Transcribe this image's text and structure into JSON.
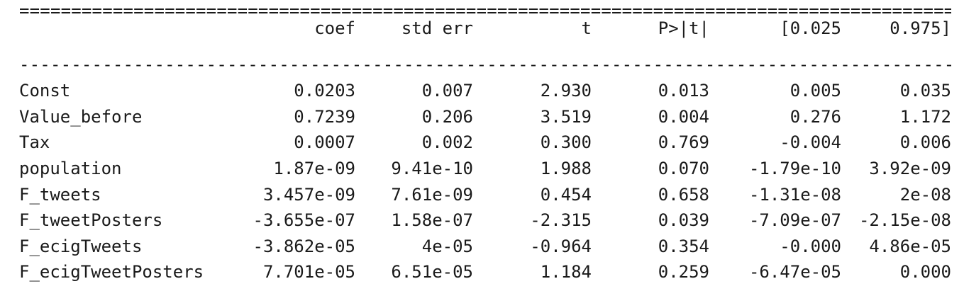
{
  "rules": {
    "top": "==========================================================================================",
    "mid": "------------------------------------------------------------------------------------------"
  },
  "header": {
    "coef": "coef",
    "std_err": "std err",
    "t": "t",
    "p": "P>|t|",
    "ci_low": "[0.025",
    "ci_high": "0.975]"
  },
  "rows": [
    {
      "name": "Const",
      "coef": "0.0203",
      "std_err": "0.007",
      "t": "2.930",
      "p": "0.013",
      "ci_low": "0.005",
      "ci_high": "0.035"
    },
    {
      "name": "Value_before",
      "coef": "0.7239",
      "std_err": "0.206",
      "t": "3.519",
      "p": "0.004",
      "ci_low": "0.276",
      "ci_high": "1.172"
    },
    {
      "name": "Tax",
      "coef": "0.0007",
      "std_err": "0.002",
      "t": "0.300",
      "p": "0.769",
      "ci_low": "-0.004",
      "ci_high": "0.006"
    },
    {
      "name": "population",
      "coef": "1.87e-09",
      "std_err": "9.41e-10",
      "t": "1.988",
      "p": "0.070",
      "ci_low": "-1.79e-10",
      "ci_high": "3.92e-09"
    },
    {
      "name": "F_tweets",
      "coef": "3.457e-09",
      "std_err": "7.61e-09",
      "t": "0.454",
      "p": "0.658",
      "ci_low": "-1.31e-08",
      "ci_high": "2e-08"
    },
    {
      "name": "F_tweetPosters",
      "coef": "-3.655e-07",
      "std_err": "1.58e-07",
      "t": "-2.315",
      "p": "0.039",
      "ci_low": "-7.09e-07",
      "ci_high": "-2.15e-08"
    },
    {
      "name": "F_ecigTweets",
      "coef": "-3.862e-05",
      "std_err": "4e-05",
      "t": "-0.964",
      "p": "0.354",
      "ci_low": "-0.000",
      "ci_high": "4.86e-05"
    },
    {
      "name": "F_ecigTweetPosters",
      "coef": "7.701e-05",
      "std_err": "6.51e-05",
      "t": "1.184",
      "p": "0.259",
      "ci_low": "-6.47e-05",
      "ci_high": "0.000"
    }
  ]
}
